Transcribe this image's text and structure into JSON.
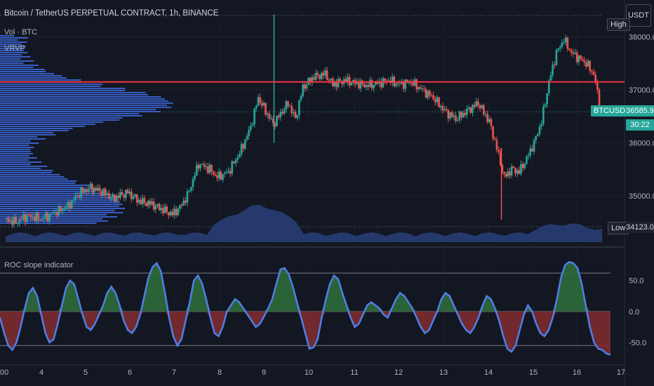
{
  "header": {
    "title": "Bitcoin / TetherUS PERPETUAL CONTRACT, 1h, BINANCE",
    "legend_vol": "Vol · BTC",
    "legend_vrvp": "VRVP",
    "currency_button": "USDT"
  },
  "markers": {
    "high_label": "High",
    "low_label": "Low",
    "symbol_label": "BTCUSDT.P",
    "last_price": "36585.9",
    "countdown": "30:22",
    "low_price": "34123.0"
  },
  "colors": {
    "background": "#131722",
    "up": "#26a69a",
    "down": "#ef5350",
    "volume_area": "#2a3f7a",
    "vrvp": "#3f6ae0",
    "red_line": "#f23645",
    "roc_line": "#4f7fe8",
    "roc_pos_fill": "#2e6b3a",
    "roc_neg_fill": "#7d2b30"
  },
  "chart_data": [
    {
      "type": "candlestick",
      "title": "Bitcoin / TetherUS PERPETUAL CONTRACT, 1h, BINANCE",
      "y_ticks": [
        "38000.0",
        "37000.0",
        "36000.0",
        "35000.0"
      ],
      "x_ticks": [
        "00",
        "4",
        "5",
        "6",
        "7",
        "8",
        "9",
        "10",
        "11",
        "12",
        "13",
        "14",
        "15",
        "16",
        "17"
      ],
      "ylim": [
        34123,
        38300
      ],
      "horizontal_line": 37150,
      "last_price": 36585.9,
      "high": 38420,
      "low": 34123,
      "close_path": [
        [
          0,
          34550
        ],
        [
          3,
          34500
        ],
        [
          6,
          34620
        ],
        [
          10,
          34560
        ],
        [
          14,
          34700
        ],
        [
          17,
          34800
        ],
        [
          20,
          35050
        ],
        [
          23,
          35150
        ],
        [
          26,
          35080
        ],
        [
          29,
          34950
        ],
        [
          33,
          35060
        ],
        [
          36,
          34900
        ],
        [
          39,
          34850
        ],
        [
          42,
          34750
        ],
        [
          45,
          34650
        ],
        [
          47,
          34780
        ],
        [
          49,
          35000
        ],
        [
          52,
          35600
        ],
        [
          55,
          35500
        ],
        [
          57,
          35350
        ],
        [
          60,
          35450
        ],
        [
          63,
          35800
        ],
        [
          66,
          36300
        ],
        [
          68,
          36850
        ],
        [
          70,
          36600
        ],
        [
          72,
          36350
        ],
        [
          74,
          36550
        ],
        [
          76,
          36750
        ],
        [
          78,
          36450
        ],
        [
          80,
          37050
        ],
        [
          83,
          37250
        ],
        [
          86,
          37300
        ],
        [
          88,
          37100
        ],
        [
          91,
          37180
        ],
        [
          94,
          37130
        ],
        [
          97,
          37080
        ],
        [
          100,
          37120
        ],
        [
          103,
          37180
        ],
        [
          106,
          37100
        ],
        [
          109,
          37150
        ],
        [
          112,
          37000
        ],
        [
          115,
          36850
        ],
        [
          118,
          36600
        ],
        [
          121,
          36450
        ],
        [
          124,
          36600
        ],
        [
          127,
          36750
        ],
        [
          130,
          36400
        ],
        [
          132,
          35900
        ],
        [
          134,
          35350
        ],
        [
          136,
          35500
        ],
        [
          138,
          35450
        ],
        [
          140,
          35700
        ],
        [
          142,
          36000
        ],
        [
          144,
          36400
        ],
        [
          146,
          37150
        ],
        [
          148,
          37700
        ],
        [
          150,
          37950
        ],
        [
          152,
          37700
        ],
        [
          154,
          37600
        ],
        [
          156,
          37500
        ],
        [
          158,
          37300
        ],
        [
          160,
          36585.9
        ]
      ],
      "volume_profile_note": "volume area rises around day 9-10 and day 15-16"
    },
    {
      "type": "area",
      "title": "ROC slope indicator",
      "y_ticks": [
        "50.0",
        "0.0",
        "-50.0"
      ],
      "ylim": [
        -75,
        95
      ],
      "reference_lines": [
        62,
        0,
        -55
      ],
      "values": [
        -10,
        -35,
        -55,
        -62,
        -50,
        -25,
        5,
        30,
        38,
        25,
        -5,
        -35,
        -50,
        -45,
        -20,
        10,
        38,
        50,
        44,
        20,
        -5,
        -25,
        -30,
        -20,
        -5,
        10,
        30,
        40,
        30,
        10,
        -15,
        -30,
        -35,
        -25,
        -5,
        25,
        55,
        72,
        78,
        65,
        30,
        -10,
        -40,
        -55,
        -45,
        -15,
        15,
        50,
        58,
        45,
        20,
        -10,
        -35,
        -40,
        -25,
        0,
        10,
        20,
        15,
        5,
        -5,
        -15,
        -25,
        -20,
        -8,
        5,
        20,
        45,
        68,
        70,
        60,
        40,
        15,
        -10,
        -35,
        -60,
        -58,
        -45,
        -10,
        20,
        45,
        58,
        52,
        30,
        10,
        -10,
        -25,
        -20,
        -5,
        10,
        15,
        10,
        5,
        -5,
        -10,
        5,
        20,
        30,
        25,
        15,
        5,
        -10,
        -25,
        -35,
        -30,
        -15,
        0,
        20,
        30,
        25,
        10,
        -5,
        -20,
        -30,
        -35,
        -25,
        -10,
        10,
        25,
        20,
        5,
        -15,
        -40,
        -60,
        -65,
        -55,
        -30,
        -5,
        10,
        0,
        -20,
        -35,
        -40,
        -30,
        -10,
        20,
        55,
        75,
        80,
        78,
        70,
        45,
        10,
        -25,
        -50,
        -60,
        -62,
        -68,
        -70
      ]
    }
  ]
}
